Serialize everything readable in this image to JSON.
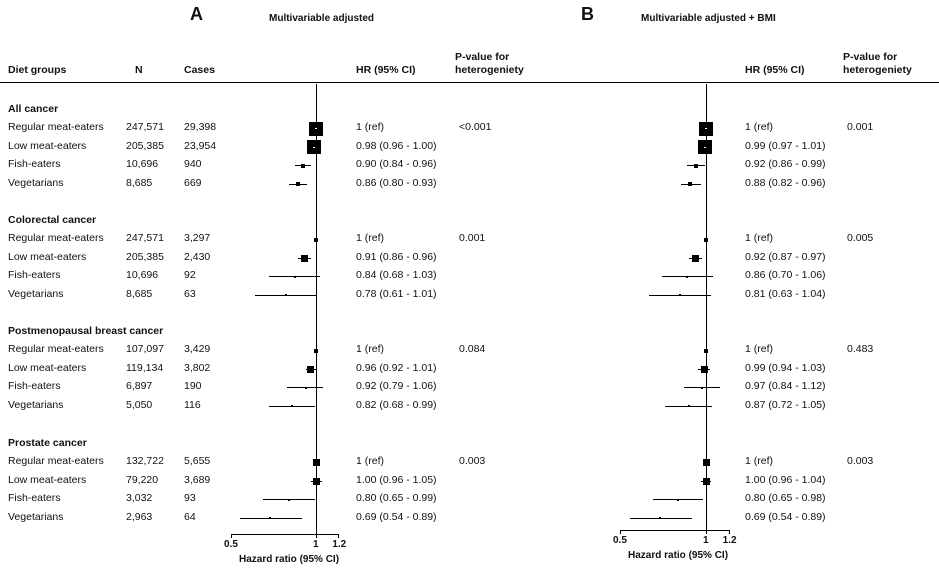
{
  "panels": {
    "A": {
      "letter": "A",
      "title": "Multivariable adjusted"
    },
    "B": {
      "letter": "B",
      "title": "Multivariable adjusted + BMI"
    }
  },
  "headers": {
    "diet_groups": "Diet groups",
    "n": "N",
    "cases": "Cases",
    "hr": "HR (95% CI)",
    "p_line1": "P-value for",
    "p_line2": "heterogeniety"
  },
  "groups": [
    {
      "title": "All cancer",
      "p_a": "<0.001",
      "p_b": "0.001",
      "rows": [
        {
          "label": "Regular meat-eaters",
          "n": "247,571",
          "cases": "29,398",
          "hr_a": "1 (ref)",
          "hr_b": "1 (ref)"
        },
        {
          "label": "Low meat-eaters",
          "n": "205,385",
          "cases": "23,954",
          "hr_a": "0.98 (0.96 - 1.00)",
          "hr_b": "0.99 (0.97 - 1.01)"
        },
        {
          "label": "Fish-eaters",
          "n": "10,696",
          "cases": "940",
          "hr_a": "0.90 (0.84 - 0.96)",
          "hr_b": "0.92 (0.86 - 0.99)"
        },
        {
          "label": "Vegetarians",
          "n": "8,685",
          "cases": "669",
          "hr_a": "0.86 (0.80 - 0.93)",
          "hr_b": "0.88 (0.82 - 0.96)"
        }
      ]
    },
    {
      "title": "Colorectal cancer",
      "p_a": "0.001",
      "p_b": "0.005",
      "rows": [
        {
          "label": "Regular meat-eaters",
          "n": "247,571",
          "cases": "3,297",
          "hr_a": "1 (ref)",
          "hr_b": "1 (ref)"
        },
        {
          "label": "Low meat-eaters",
          "n": "205,385",
          "cases": "2,430",
          "hr_a": "0.91 (0.86 - 0.96)",
          "hr_b": "0.92 (0.87 - 0.97)"
        },
        {
          "label": "Fish-eaters",
          "n": "10,696",
          "cases": "92",
          "hr_a": "0.84 (0.68 - 1.03)",
          "hr_b": "0.86 (0.70 - 1.06)"
        },
        {
          "label": "Vegetarians",
          "n": "8,685",
          "cases": "63",
          "hr_a": "0.78 (0.61 - 1.01)",
          "hr_b": "0.81 (0.63 - 1.04)"
        }
      ]
    },
    {
      "title": "Postmenopausal breast cancer",
      "p_a": "0.084",
      "p_b": "0.483",
      "rows": [
        {
          "label": "Regular meat-eaters",
          "n": "107,097",
          "cases": "3,429",
          "hr_a": "1 (ref)",
          "hr_b": "1 (ref)"
        },
        {
          "label": "Low meat-eaters",
          "n": "119,134",
          "cases": "3,802",
          "hr_a": "0.96 (0.92 - 1.01)",
          "hr_b": "0.99 (0.94 - 1.03)"
        },
        {
          "label": "Fish-eaters",
          "n": "6,897",
          "cases": "190",
          "hr_a": "0.92 (0.79 - 1.06)",
          "hr_b": "0.97 (0.84 - 1.12)"
        },
        {
          "label": "Vegetarians",
          "n": "5,050",
          "cases": "116",
          "hr_a": "0.82 (0.68 - 0.99)",
          "hr_b": "0.87 (0.72 - 1.05)"
        }
      ]
    },
    {
      "title": "Prostate cancer",
      "p_a": "0.003",
      "p_b": "0.003",
      "rows": [
        {
          "label": "Regular meat-eaters",
          "n": "132,722",
          "cases": "5,655",
          "hr_a": "1 (ref)",
          "hr_b": "1 (ref)"
        },
        {
          "label": "Low meat-eaters",
          "n": "79,220",
          "cases": "3,689",
          "hr_a": "1.00 (0.96 - 1.05)",
          "hr_b": "1.00 (0.96 - 1.04)"
        },
        {
          "label": "Fish-eaters",
          "n": "3,032",
          "cases": "93",
          "hr_a": "0.80 (0.65 - 0.99)",
          "hr_b": "0.80 (0.65 - 0.98)"
        },
        {
          "label": "Vegetarians",
          "n": "2,963",
          "cases": "64",
          "hr_a": "0.69 (0.54 - 0.89)",
          "hr_b": "0.69 (0.54 - 0.89)"
        }
      ]
    }
  ],
  "chart_data": {
    "type": "forest",
    "xlabel": "Hazard ratio (95% CI)",
    "xscale": "log",
    "xlim": [
      0.5,
      1.2
    ],
    "reference_line": 1,
    "ticks": [
      "0.5",
      "1",
      "1.2"
    ],
    "panels": [
      {
        "name": "Multivariable adjusted",
        "points": [
          [
            1,
            1,
            1,
            "large"
          ],
          [
            0.98,
            0.96,
            1.0,
            "large"
          ],
          [
            0.9,
            0.84,
            0.96,
            "small"
          ],
          [
            0.86,
            0.8,
            0.93,
            "small"
          ],
          [
            1,
            1,
            1,
            "small"
          ],
          [
            0.91,
            0.86,
            0.96,
            "medium"
          ],
          [
            0.84,
            0.68,
            1.03,
            "tiny"
          ],
          [
            0.78,
            0.61,
            1.01,
            "tiny"
          ],
          [
            1,
            1,
            1,
            "small"
          ],
          [
            0.96,
            0.92,
            1.01,
            "medium"
          ],
          [
            0.92,
            0.79,
            1.06,
            "tiny"
          ],
          [
            0.82,
            0.68,
            0.99,
            "tiny"
          ],
          [
            1,
            1,
            1,
            "medium"
          ],
          [
            1.0,
            0.96,
            1.05,
            "medium"
          ],
          [
            0.8,
            0.65,
            0.99,
            "tiny"
          ],
          [
            0.69,
            0.54,
            0.89,
            "tiny"
          ]
        ]
      },
      {
        "name": "Multivariable adjusted + BMI",
        "points": [
          [
            1,
            1,
            1,
            "large"
          ],
          [
            0.99,
            0.97,
            1.01,
            "large"
          ],
          [
            0.92,
            0.86,
            0.99,
            "small"
          ],
          [
            0.88,
            0.82,
            0.96,
            "small"
          ],
          [
            1,
            1,
            1,
            "small"
          ],
          [
            0.92,
            0.87,
            0.97,
            "medium"
          ],
          [
            0.86,
            0.7,
            1.06,
            "tiny"
          ],
          [
            0.81,
            0.63,
            1.04,
            "tiny"
          ],
          [
            1,
            1,
            1,
            "small"
          ],
          [
            0.99,
            0.94,
            1.03,
            "medium"
          ],
          [
            0.97,
            0.84,
            1.12,
            "tiny"
          ],
          [
            0.87,
            0.72,
            1.05,
            "tiny"
          ],
          [
            1,
            1,
            1,
            "medium"
          ],
          [
            1.0,
            0.96,
            1.04,
            "medium"
          ],
          [
            0.8,
            0.65,
            0.98,
            "tiny"
          ],
          [
            0.69,
            0.54,
            0.89,
            "tiny"
          ]
        ]
      }
    ]
  }
}
